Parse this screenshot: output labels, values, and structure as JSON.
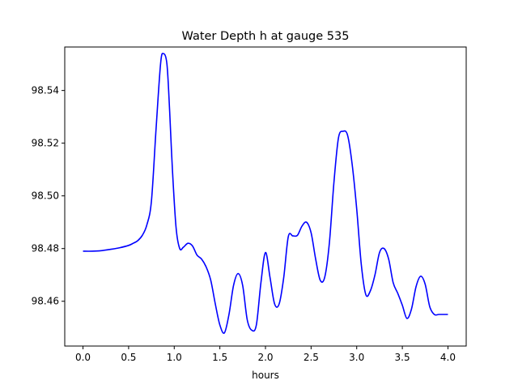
{
  "chart_data": {
    "type": "line",
    "title": "Water Depth h at gauge 535",
    "xlabel": "hours",
    "ylabel": "",
    "xlim": [
      -0.2,
      4.2
    ],
    "ylim": [
      98.443,
      98.5565
    ],
    "xticks": [
      0.0,
      0.5,
      1.0,
      1.5,
      2.0,
      2.5,
      3.0,
      3.5,
      4.0
    ],
    "xtick_labels": [
      "0.0",
      "0.5",
      "1.0",
      "1.5",
      "2.0",
      "2.5",
      "3.0",
      "3.5",
      "4.0"
    ],
    "yticks": [
      98.46,
      98.48,
      98.5,
      98.52,
      98.54
    ],
    "ytick_labels": [
      "98.46",
      "98.48",
      "98.50",
      "98.52",
      "98.54"
    ],
    "grid": false,
    "series": [
      {
        "color": "#0000ff",
        "x": [
          0.0,
          0.1,
          0.2,
          0.3,
          0.4,
          0.5,
          0.55,
          0.6,
          0.65,
          0.7,
          0.75,
          0.8,
          0.85,
          0.88,
          0.92,
          0.95,
          0.98,
          1.02,
          1.06,
          1.1,
          1.15,
          1.2,
          1.25,
          1.3,
          1.35,
          1.4,
          1.45,
          1.5,
          1.55,
          1.6,
          1.65,
          1.7,
          1.75,
          1.8,
          1.85,
          1.9,
          1.95,
          2.0,
          2.05,
          2.1,
          2.15,
          2.2,
          2.25,
          2.3,
          2.35,
          2.4,
          2.45,
          2.5,
          2.55,
          2.6,
          2.65,
          2.7,
          2.75,
          2.8,
          2.85,
          2.9,
          2.95,
          3.0,
          3.05,
          3.1,
          3.15,
          3.2,
          3.25,
          3.3,
          3.35,
          3.4,
          3.45,
          3.5,
          3.55,
          3.6,
          3.65,
          3.7,
          3.75,
          3.8,
          3.85,
          3.9,
          3.95,
          4.0
        ],
        "y": [
          98.479,
          98.479,
          98.4792,
          98.4797,
          98.4803,
          98.4812,
          98.482,
          98.483,
          98.485,
          98.489,
          98.498,
          98.525,
          98.55,
          98.554,
          98.55,
          98.532,
          98.51,
          98.488,
          98.48,
          98.4805,
          98.482,
          98.481,
          98.4775,
          98.476,
          98.473,
          98.468,
          98.459,
          98.451,
          98.448,
          98.455,
          98.466,
          98.4705,
          98.466,
          98.453,
          98.449,
          98.451,
          98.467,
          98.4785,
          98.469,
          98.459,
          98.459,
          98.469,
          98.4845,
          98.4848,
          98.485,
          98.4885,
          98.49,
          98.486,
          98.476,
          98.468,
          98.4692,
          98.482,
          98.505,
          98.522,
          98.5245,
          98.523,
          98.512,
          98.495,
          98.474,
          98.4625,
          98.464,
          98.47,
          98.4785,
          98.48,
          98.476,
          98.467,
          98.463,
          98.4585,
          98.4535,
          98.457,
          98.4655,
          98.4695,
          98.4665,
          98.458,
          98.455,
          98.455,
          98.455,
          98.455
        ]
      }
    ]
  }
}
